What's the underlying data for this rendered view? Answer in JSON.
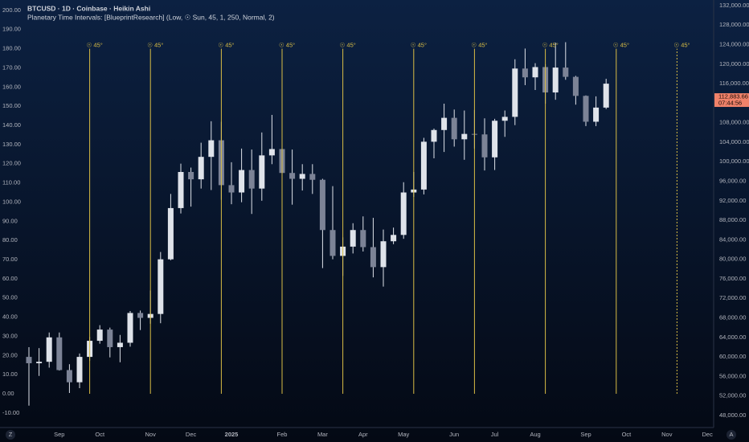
{
  "chart_data": {
    "type": "candlestick",
    "title": "BTCUSD · 1D · Coinbase · Heikin Ashi",
    "subtitle": "Planetary Time Intervals: [BlueprintResearch] (Low, ☉ Sun, 45, 1, 250, Normal, 2)",
    "categories": [
      null,
      null,
      null,
      "Sep",
      null,
      null,
      null,
      "Oct",
      null,
      null,
      null,
      null,
      "Nov",
      null,
      null,
      null,
      "Dec",
      null,
      null,
      null,
      "2025",
      null,
      null,
      null,
      null,
      "Feb",
      null,
      null,
      null,
      "Mar",
      null,
      null,
      null,
      "Apr",
      null,
      null,
      null,
      "May",
      null,
      null,
      null,
      null,
      "Jun",
      null,
      null,
      null,
      "Jul",
      null,
      null,
      null,
      "Aug",
      null,
      null,
      null,
      null,
      "Sep",
      null,
      null,
      null,
      "Oct",
      null,
      null,
      null,
      "Nov",
      null,
      null,
      null,
      "Dec"
    ],
    "candles": {
      "axis": "y2",
      "color": "#dfe3ea",
      "open": [
        60000,
        58700,
        59000,
        64000,
        57300,
        54800,
        60000,
        63300,
        65600,
        62000,
        62900,
        69000,
        68000,
        68800,
        80000,
        90500,
        97900,
        96400,
        101000,
        104400,
        95200,
        93700,
        98300,
        94500,
        101300,
        102600,
        97700,
        96500,
        97500,
        96300,
        86000,
        80700,
        82600,
        86000,
        82500,
        78400,
        83700,
        85000,
        93700,
        94300,
        104100,
        106500,
        109000,
        104600,
        105700,
        105600,
        100900,
        108400,
        109200,
        119100,
        117300,
        119400,
        114200,
        119300,
        117400,
        113500,
        108200,
        111100,
        null,
        null,
        null,
        null,
        null,
        null,
        null,
        null,
        null,
        null
      ],
      "high": [
        62000,
        61800,
        65000,
        65000,
        58500,
        60700,
        64100,
        66500,
        66000,
        64500,
        69400,
        69500,
        73600,
        81500,
        93400,
        99600,
        98800,
        103900,
        108300,
        108200,
        99900,
        102700,
        102500,
        106000,
        109600,
        106400,
        102500,
        99500,
        99500,
        96500,
        95000,
        84500,
        87400,
        88800,
        88500,
        86100,
        86500,
        95800,
        97900,
        104900,
        106800,
        111900,
        110700,
        110500,
        110600,
        108900,
        108800,
        110500,
        121000,
        123200,
        120200,
        120000,
        124400,
        124500,
        117600,
        113600,
        113400,
        117000,
        null,
        null,
        null,
        null,
        null,
        null,
        null,
        null,
        null,
        null
      ],
      "low": [
        50000,
        56100,
        57800,
        57200,
        52600,
        53600,
        59200,
        62700,
        59900,
        58900,
        62100,
        65500,
        66800,
        66900,
        79800,
        89400,
        90800,
        94500,
        94200,
        92200,
        91300,
        91700,
        89300,
        92000,
        99500,
        91200,
        91200,
        94100,
        93400,
        78200,
        80000,
        76600,
        81200,
        81600,
        76300,
        74400,
        83100,
        84200,
        92800,
        93300,
        100700,
        102000,
        103100,
        100400,
        102700,
        98200,
        98300,
        105100,
        107500,
        115700,
        114700,
        111900,
        112700,
        116800,
        111700,
        107300,
        107300,
        110800,
        null,
        null,
        null,
        null,
        null,
        null,
        null,
        null,
        null,
        null
      ],
      "close": [
        58700,
        59000,
        64000,
        57300,
        54800,
        60000,
        63300,
        65600,
        62000,
        62900,
        69000,
        68000,
        68800,
        80000,
        90500,
        97900,
        96400,
        101000,
        104400,
        95200,
        93700,
        98300,
        94500,
        101300,
        102600,
        97700,
        96500,
        97500,
        96300,
        86000,
        80700,
        82600,
        86000,
        82500,
        78400,
        83700,
        85000,
        93700,
        94300,
        104100,
        106500,
        109000,
        104600,
        105700,
        105600,
        100900,
        108400,
        109200,
        119100,
        117300,
        119400,
        114200,
        119300,
        117400,
        113500,
        108200,
        111100,
        116000,
        null,
        null,
        null,
        null,
        null,
        null,
        null,
        null,
        null,
        null
      ]
    },
    "series": [
      {
        "color": "#d9bd45",
        "values": [
          null,
          null,
          null,
          null,
          null,
          null,
          180,
          null,
          null,
          null,
          null,
          null,
          180,
          null,
          null,
          null,
          null,
          null,
          null,
          180,
          null,
          null,
          null,
          null,
          null,
          180,
          null,
          null,
          null,
          null,
          null,
          180,
          null,
          null,
          null,
          null,
          null,
          null,
          180,
          null,
          null,
          null,
          null,
          null,
          180,
          null,
          null,
          null,
          null,
          null,
          null,
          180,
          null,
          null,
          null,
          null,
          null,
          null,
          180,
          null,
          null,
          null,
          null,
          null,
          180,
          null,
          null,
          null
        ],
        "value_labels": [
          null,
          null,
          null,
          null,
          null,
          null,
          "☉ 45°",
          null,
          null,
          null,
          null,
          null,
          "☉ 45°",
          null,
          null,
          null,
          null,
          null,
          null,
          "☉ 45°",
          null,
          null,
          null,
          null,
          null,
          "☉ 45°",
          null,
          null,
          null,
          null,
          null,
          "☉ 45°",
          null,
          null,
          null,
          null,
          null,
          null,
          "☉ 45°",
          null,
          null,
          null,
          null,
          null,
          "☉ 45°",
          null,
          null,
          null,
          null,
          null,
          null,
          "☉ 45°",
          null,
          null,
          null,
          null,
          null,
          null,
          "☉ 45°",
          null,
          null,
          null,
          null,
          null,
          "☉ 45°",
          null,
          null,
          null
        ],
        "dotted_from": 64
      }
    ],
    "ylim": [
      -17.6,
      205.4
    ],
    "yticks": [
      {
        "value": 200,
        "label": "200.00"
      },
      {
        "value": 190,
        "label": "190.00"
      },
      {
        "value": 180,
        "label": "180.00"
      },
      {
        "value": 170,
        "label": "170.00"
      },
      {
        "value": 160,
        "label": "160.00"
      },
      {
        "value": 150,
        "label": "150.00"
      },
      {
        "value": 140,
        "label": "140.00"
      },
      {
        "value": 130,
        "label": "130.00"
      },
      {
        "value": 120,
        "label": "120.00"
      },
      {
        "value": 110,
        "label": "110.00"
      },
      {
        "value": 100,
        "label": "100.00"
      },
      {
        "value": 90,
        "label": "90.00"
      },
      {
        "value": 80,
        "label": "80.00"
      },
      {
        "value": 70,
        "label": "70.00"
      },
      {
        "value": 60,
        "label": "60.00"
      },
      {
        "value": 50,
        "label": "50.00"
      },
      {
        "value": 40,
        "label": "40.00"
      },
      {
        "value": 30,
        "label": "30.00"
      },
      {
        "value": 20,
        "label": "20.00"
      },
      {
        "value": 10,
        "label": "10.00"
      },
      {
        "value": 0,
        "label": "0.00"
      },
      {
        "value": -10,
        "label": "-10.00"
      }
    ],
    "y2lim": [
      45520,
      133150
    ],
    "y2ticks": [
      {
        "value": 132000,
        "label": "132,000.00"
      },
      {
        "value": 128000,
        "label": "128,000.00"
      },
      {
        "value": 124000,
        "label": "124,000.00"
      },
      {
        "value": 120000,
        "label": "120,000.00"
      },
      {
        "value": 116000,
        "label": "116,000.00"
      },
      {
        "value": 112000,
        "label": "112,000.00"
      },
      {
        "value": 108000,
        "label": "108,000.00"
      },
      {
        "value": 104000,
        "label": "104,000.00"
      },
      {
        "value": 100000,
        "label": "100,000.00"
      },
      {
        "value": 96000,
        "label": "96,000.00"
      },
      {
        "value": 92000,
        "label": "92,000.00"
      },
      {
        "value": 88000,
        "label": "88,000.00"
      },
      {
        "value": 84000,
        "label": "84,000.00"
      },
      {
        "value": 80000,
        "label": "80,000.00"
      },
      {
        "value": 76000,
        "label": "76,000.00"
      },
      {
        "value": 72000,
        "label": "72,000.00"
      },
      {
        "value": 68000,
        "label": "68,000.00"
      },
      {
        "value": 64000,
        "label": "64,000.00"
      },
      {
        "value": 60000,
        "label": "60,000.00"
      },
      {
        "value": 56000,
        "label": "56,000.00"
      },
      {
        "value": 52000,
        "label": "52,000.00"
      },
      {
        "value": 48000,
        "label": "48,000.00"
      }
    ],
    "last_price": {
      "value": 112883.66,
      "label": "112,883.66",
      "countdown": "07:44:56",
      "color": "#f0826a"
    }
  }
}
